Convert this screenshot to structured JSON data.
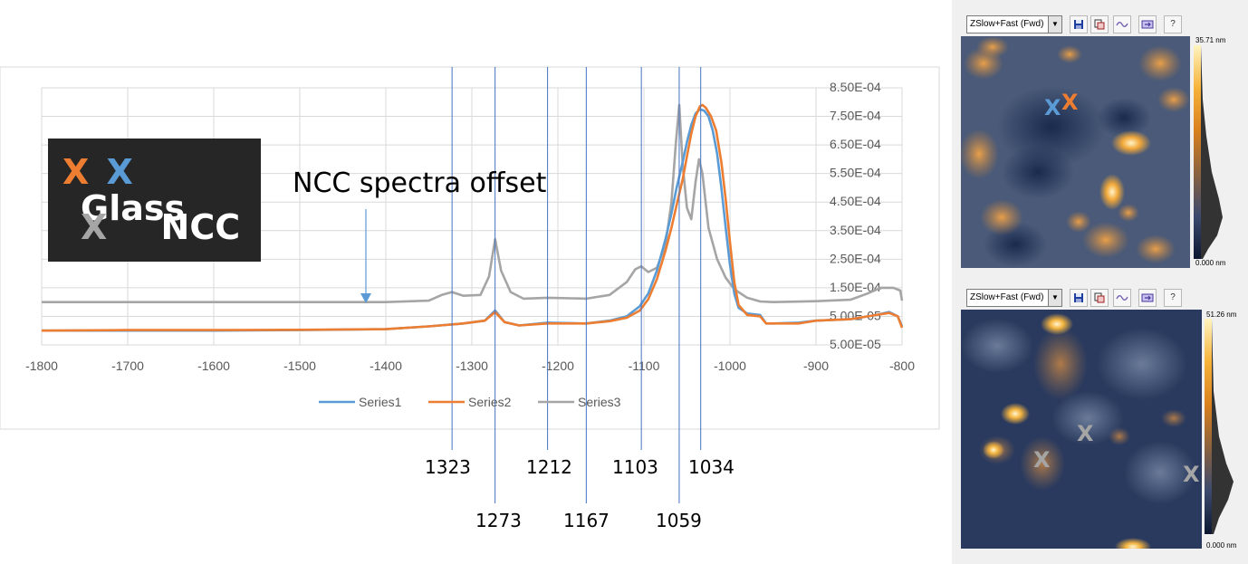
{
  "colors": {
    "series1": "#5b9bd5",
    "series2": "#ed7d31",
    "series3": "#a5a5a5",
    "peak_line": "#4472c4",
    "grid": "#d9d9d9"
  },
  "legend_box": {
    "row1": {
      "marker_orange": "X",
      "marker_blue": "X",
      "label": "Glass"
    },
    "row2": {
      "marker_gray": "X",
      "label": "NCC"
    }
  },
  "annotation_text": "NCC spectra offset",
  "peak_labels": [
    "1323",
    "1273",
    "1212",
    "1167",
    "1103",
    "1059",
    "1034"
  ],
  "chart_data": {
    "type": "line",
    "xlim": [
      -1800,
      -800
    ],
    "x_ticks": [
      "-1800",
      "-1700",
      "-1600",
      "-1500",
      "-1400",
      "-1300",
      "-1200",
      "-1100",
      "-1000",
      "-900",
      "-800"
    ],
    "ylim": [
      -5e-05,
      0.00085
    ],
    "y_ticks": [
      "8.50E-04",
      "7.50E-04",
      "6.50E-04",
      "5.50E-04",
      "4.50E-04",
      "3.50E-04",
      "2.50E-04",
      "1.50E-04",
      "5.00E-05",
      "5.00E-05"
    ],
    "grid": true,
    "legend_position": "bottom",
    "peak_positions": [
      -1323,
      -1273,
      -1212,
      -1167,
      -1103,
      -1059,
      -1034
    ],
    "series": [
      {
        "name": "Series1",
        "points": [
          [
            -1800,
            0.0
          ],
          [
            -1700,
            0.0
          ],
          [
            -1600,
            0.0
          ],
          [
            -1500,
            2e-06
          ],
          [
            -1400,
            5e-06
          ],
          [
            -1350,
            1.5e-05
          ],
          [
            -1310,
            2.5e-05
          ],
          [
            -1285,
            3.5e-05
          ],
          [
            -1273,
            7e-05
          ],
          [
            -1262,
            3e-05
          ],
          [
            -1245,
            1.8e-05
          ],
          [
            -1212,
            2.8e-05
          ],
          [
            -1167,
            2.5e-05
          ],
          [
            -1140,
            3.5e-05
          ],
          [
            -1120,
            5e-05
          ],
          [
            -1105,
            8.5e-05
          ],
          [
            -1095,
            0.00013
          ],
          [
            -1085,
            0.00021
          ],
          [
            -1075,
            0.00032
          ],
          [
            -1068,
            0.00041
          ],
          [
            -1062,
            0.0005
          ],
          [
            -1055,
            0.00059
          ],
          [
            -1050,
            0.00066
          ],
          [
            -1045,
            0.00072
          ],
          [
            -1040,
            0.00076
          ],
          [
            -1035,
            0.000775
          ],
          [
            -1030,
            0.00077
          ],
          [
            -1025,
            0.00075
          ],
          [
            -1020,
            0.0007
          ],
          [
            -1015,
            0.00062
          ],
          [
            -1010,
            0.0005
          ],
          [
            -1005,
            0.00036
          ],
          [
            -1000,
            0.00023
          ],
          [
            -995,
            0.00013
          ],
          [
            -990,
            8e-05
          ],
          [
            -980,
            6e-05
          ],
          [
            -965,
            5.5e-05
          ],
          [
            -958,
            2.5e-05
          ],
          [
            -950,
            2.5e-05
          ],
          [
            -920,
            2.8e-05
          ],
          [
            -900,
            3.5e-05
          ],
          [
            -860,
            4e-05
          ],
          [
            -830,
            5.5e-05
          ],
          [
            -815,
            6.5e-05
          ],
          [
            -805,
            5e-05
          ],
          [
            -800,
            1.5e-05
          ]
        ]
      },
      {
        "name": "Series2",
        "points": [
          [
            -1800,
            0.0
          ],
          [
            -1700,
            2e-06
          ],
          [
            -1600,
            2e-06
          ],
          [
            -1500,
            3e-06
          ],
          [
            -1400,
            5e-06
          ],
          [
            -1350,
            1.5e-05
          ],
          [
            -1310,
            2.5e-05
          ],
          [
            -1285,
            3.5e-05
          ],
          [
            -1273,
            6.5e-05
          ],
          [
            -1262,
            3e-05
          ],
          [
            -1245,
            1.8e-05
          ],
          [
            -1212,
            2.5e-05
          ],
          [
            -1167,
            2.5e-05
          ],
          [
            -1140,
            3.3e-05
          ],
          [
            -1120,
            4.5e-05
          ],
          [
            -1105,
            7e-05
          ],
          [
            -1095,
            0.00011
          ],
          [
            -1085,
            0.00018
          ],
          [
            -1075,
            0.00028
          ],
          [
            -1068,
            0.00036
          ],
          [
            -1062,
            0.00044
          ],
          [
            -1055,
            0.00053
          ],
          [
            -1050,
            0.00061
          ],
          [
            -1045,
            0.00069
          ],
          [
            -1040,
            0.00075
          ],
          [
            -1035,
            0.000785
          ],
          [
            -1032,
            0.00079
          ],
          [
            -1028,
            0.00078
          ],
          [
            -1022,
            0.00075
          ],
          [
            -1016,
            0.0007
          ],
          [
            -1010,
            0.00059
          ],
          [
            -1005,
            0.00046
          ],
          [
            -1000,
            0.00031
          ],
          [
            -995,
            0.00017
          ],
          [
            -990,
            9e-05
          ],
          [
            -980,
            5.5e-05
          ],
          [
            -965,
            5e-05
          ],
          [
            -958,
            2.5e-05
          ],
          [
            -950,
            2.5e-05
          ],
          [
            -920,
            2.5e-05
          ],
          [
            -900,
            3.5e-05
          ],
          [
            -860,
            4e-05
          ],
          [
            -830,
            5.5e-05
          ],
          [
            -815,
            6.2e-05
          ],
          [
            -805,
            5e-05
          ],
          [
            -800,
            1e-05
          ]
        ]
      },
      {
        "name": "Series3",
        "points": [
          [
            -1800,
            0.0001
          ],
          [
            -1700,
            0.0001
          ],
          [
            -1600,
            0.0001
          ],
          [
            -1500,
            0.0001
          ],
          [
            -1400,
            0.0001
          ],
          [
            -1350,
            0.000105
          ],
          [
            -1335,
            0.000125
          ],
          [
            -1323,
            0.000135
          ],
          [
            -1310,
            0.000122
          ],
          [
            -1290,
            0.000125
          ],
          [
            -1280,
            0.00019
          ],
          [
            -1273,
            0.00032
          ],
          [
            -1266,
            0.00021
          ],
          [
            -1255,
            0.000135
          ],
          [
            -1240,
            0.000112
          ],
          [
            -1212,
            0.000115
          ],
          [
            -1167,
            0.000112
          ],
          [
            -1140,
            0.000125
          ],
          [
            -1120,
            0.00017
          ],
          [
            -1110,
            0.000215
          ],
          [
            -1103,
            0.000225
          ],
          [
            -1095,
            0.000205
          ],
          [
            -1085,
            0.00022
          ],
          [
            -1075,
            0.0003
          ],
          [
            -1068,
            0.00045
          ],
          [
            -1063,
            0.00065
          ],
          [
            -1059,
            0.00079
          ],
          [
            -1055,
            0.00058
          ],
          [
            -1050,
            0.00043
          ],
          [
            -1045,
            0.00039
          ],
          [
            -1040,
            0.00052
          ],
          [
            -1036,
            0.0006
          ],
          [
            -1032,
            0.00055
          ],
          [
            -1025,
            0.00036
          ],
          [
            -1015,
            0.00025
          ],
          [
            -1005,
            0.000185
          ],
          [
            -995,
            0.000145
          ],
          [
            -980,
            0.000115
          ],
          [
            -965,
            0.000102
          ],
          [
            -950,
            0.0001
          ],
          [
            -900,
            0.000103
          ],
          [
            -860,
            0.000108
          ],
          [
            -840,
            0.00013
          ],
          [
            -825,
            0.00015
          ],
          [
            -810,
            0.00015
          ],
          [
            -802,
            0.00014
          ],
          [
            -800,
            0.000105
          ]
        ]
      }
    ]
  },
  "afm_panels": [
    {
      "mode_select": "ZSlow+Fast (Fwd)",
      "toolbar_icons": [
        "save-icon",
        "copy-icon",
        "wave-icon",
        "export-icon",
        "help-icon"
      ],
      "help_label": "?",
      "scale_max": "35.71 nm",
      "scale_min": "0.000 nm",
      "markers": [
        {
          "label": "X",
          "color": "#5b9bd5"
        },
        {
          "label": "X",
          "color": "#ed7d31"
        }
      ]
    },
    {
      "mode_select": "ZSlow+Fast (Fwd)",
      "toolbar_icons": [
        "save-icon",
        "copy-icon",
        "wave-icon",
        "export-icon",
        "help-icon"
      ],
      "help_label": "?",
      "scale_max": "51.26 nm",
      "scale_min": "0.000 nm",
      "markers": [
        {
          "label": "X",
          "color": "#a5a5a5"
        },
        {
          "label": "X",
          "color": "#a5a5a5"
        },
        {
          "label": "X",
          "color": "#a5a5a5"
        }
      ]
    }
  ]
}
